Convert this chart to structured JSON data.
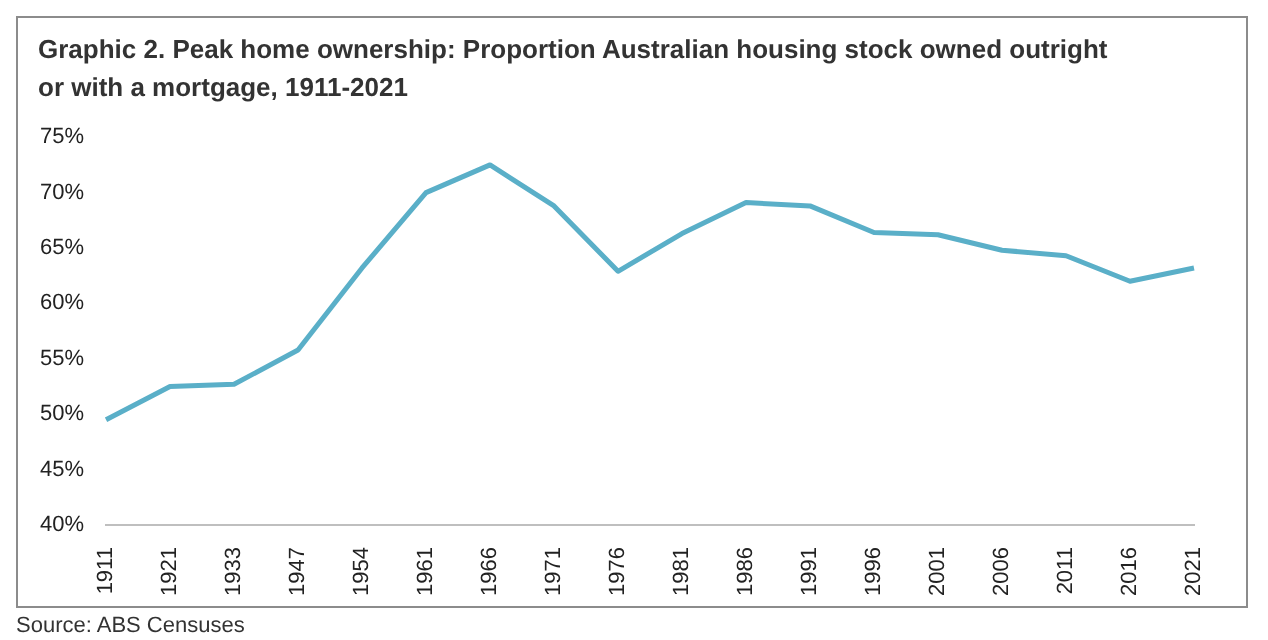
{
  "chart_data": {
    "type": "line",
    "title": "Graphic 2. Peak home ownership: Proportion Australian housing stock owned outright or with a mortgage, 1911-2021",
    "categories": [
      "1911",
      "1921",
      "1933",
      "1947",
      "1954",
      "1961",
      "1966",
      "1971",
      "1976",
      "1981",
      "1986",
      "1991",
      "1996",
      "2001",
      "2006",
      "2011",
      "2016",
      "2021"
    ],
    "series": [
      {
        "color": "#5aafc8",
        "values": [
          49.5,
          52.5,
          52.7,
          55.8,
          63.2,
          70,
          72.5,
          68.8,
          62.9,
          66.3,
          69.1,
          68.8,
          66.4,
          66.2,
          64.8,
          64.3,
          62,
          63.2
        ]
      }
    ],
    "ylim": [
      40,
      75
    ],
    "yticks": [
      {
        "value": 40,
        "label": "40%"
      },
      {
        "value": 45,
        "label": "45%"
      },
      {
        "value": 50,
        "label": "50%"
      },
      {
        "value": 55,
        "label": "55%"
      },
      {
        "value": 60,
        "label": "60%"
      },
      {
        "value": 65,
        "label": "65%"
      },
      {
        "value": 70,
        "label": "70%"
      },
      {
        "value": 75,
        "label": "75%"
      }
    ],
    "grid": false,
    "legend": false,
    "marker": "none",
    "line_style": "solid",
    "annotations": [
      "Source: ABS Censuses"
    ]
  }
}
